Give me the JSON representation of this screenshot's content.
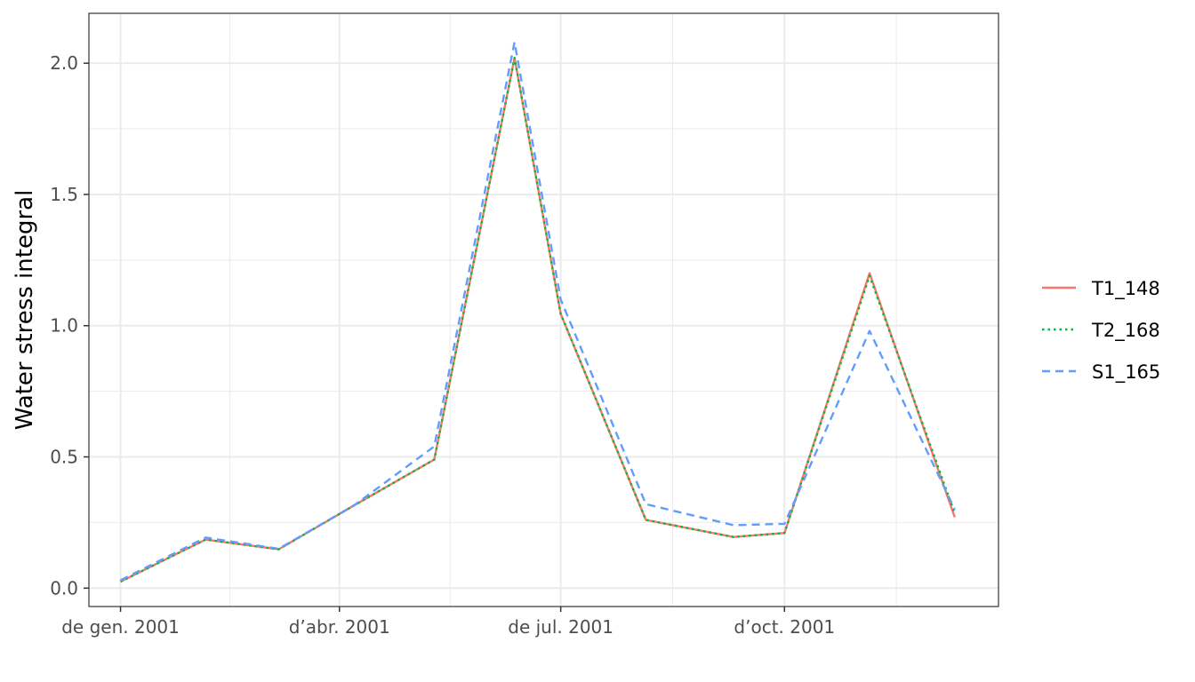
{
  "chart_data": {
    "type": "line",
    "title": "",
    "xlabel": "",
    "ylabel": "Water stress integral",
    "x": [
      "2001-01-01",
      "2001-02-05",
      "2001-03-07",
      "2001-04-07",
      "2001-05-10",
      "2001-06-12",
      "2001-07-01",
      "2001-08-05",
      "2001-09-10",
      "2001-10-01",
      "2001-11-05",
      "2001-12-10"
    ],
    "x_ticks": [
      {
        "date": "2001-01-01",
        "label": "de gen. 2001"
      },
      {
        "date": "2001-04-01",
        "label": "d’abr. 2001"
      },
      {
        "date": "2001-07-01",
        "label": "de jul. 2001"
      },
      {
        "date": "2001-10-01",
        "label": "d’oct. 2001"
      }
    ],
    "xlim": [
      "2000-12-19",
      "2001-12-28"
    ],
    "ylim": [
      -0.07,
      2.19
    ],
    "y_ticks": [
      0.0,
      0.5,
      1.0,
      1.5,
      2.0
    ],
    "y_tick_labels": [
      "0.0",
      "0.5",
      "1.0",
      "1.5",
      "2.0"
    ],
    "grid": true,
    "legend_position": "right",
    "series": [
      {
        "name": "T1_148",
        "color": "#F8766D",
        "dash": "solid",
        "values": [
          0.025,
          0.185,
          0.148,
          0.315,
          0.49,
          2.02,
          1.045,
          0.26,
          0.195,
          0.21,
          1.2,
          0.27
        ]
      },
      {
        "name": "T2_168",
        "color": "#00BA38",
        "dash": "dotted",
        "values": [
          0.025,
          0.185,
          0.148,
          0.315,
          0.49,
          2.02,
          1.045,
          0.26,
          0.195,
          0.21,
          1.19,
          0.285
        ]
      },
      {
        "name": "S1_165",
        "color": "#619CFF",
        "dash": "dashed",
        "values": [
          0.03,
          0.193,
          0.15,
          0.315,
          0.54,
          2.08,
          1.1,
          0.32,
          0.24,
          0.245,
          0.98,
          0.3
        ]
      }
    ]
  }
}
